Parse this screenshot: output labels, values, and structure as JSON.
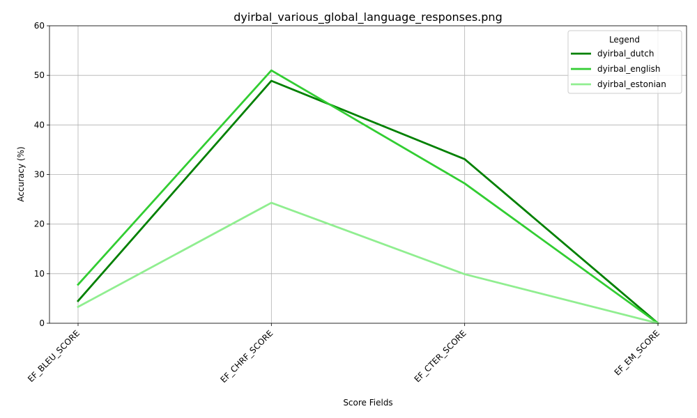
{
  "chart_data": {
    "type": "line",
    "title": "dyirbal_various_global_language_responses.png",
    "xlabel": "Score Fields",
    "ylabel": "Accuracy (%)",
    "categories": [
      "EF_BLEU_SCORE",
      "EF_CHRF_SCORE",
      "EF_CTER_SCORE",
      "EF_EM_SCORE"
    ],
    "ylim": [
      0,
      60
    ],
    "yticks": [
      0,
      10,
      20,
      30,
      40,
      50,
      60
    ],
    "grid": true,
    "legend": {
      "title": "Legend",
      "placement": "top-right"
    },
    "series": [
      {
        "name": "dyirbal_dutch",
        "color": "#008000",
        "values": [
          4.5,
          48.9,
          33.1,
          0.0
        ]
      },
      {
        "name": "dyirbal_english",
        "color": "#32cd32",
        "values": [
          7.8,
          51.0,
          28.2,
          0.0
        ]
      },
      {
        "name": "dyirbal_estonian",
        "color": "#90ee90",
        "values": [
          3.3,
          24.3,
          9.9,
          0.0
        ]
      }
    ]
  }
}
